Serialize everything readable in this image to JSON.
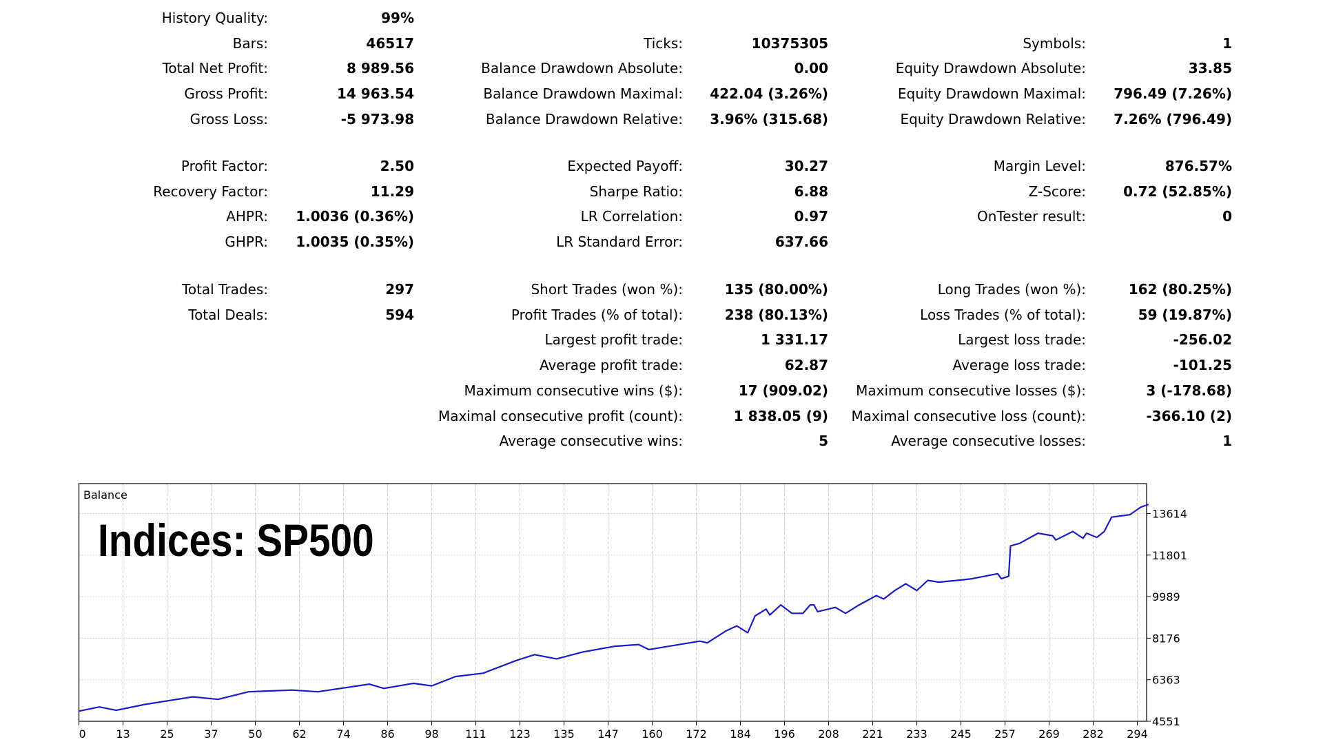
{
  "stats": {
    "sections": [
      {
        "rows": [
          [
            {
              "label": "History Quality:",
              "value": "99%"
            },
            null,
            null
          ],
          [
            {
              "label": "Bars:",
              "value": "46517"
            },
            {
              "label": "Ticks:",
              "value": "10375305"
            },
            {
              "label": "Symbols:",
              "value": "1"
            }
          ],
          [
            {
              "label": "Total Net Profit:",
              "value": "8 989.56"
            },
            {
              "label": "Balance Drawdown Absolute:",
              "value": "0.00"
            },
            {
              "label": "Equity Drawdown Absolute:",
              "value": "33.85"
            }
          ],
          [
            {
              "label": "Gross Profit:",
              "value": "14 963.54"
            },
            {
              "label": "Balance Drawdown Maximal:",
              "value": "422.04 (3.26%)"
            },
            {
              "label": "Equity Drawdown Maximal:",
              "value": "796.49 (7.26%)"
            }
          ],
          [
            {
              "label": "Gross Loss:",
              "value": "-5 973.98"
            },
            {
              "label": "Balance Drawdown Relative:",
              "value": "3.96% (315.68)"
            },
            {
              "label": "Equity Drawdown Relative:",
              "value": "7.26% (796.49)"
            }
          ]
        ]
      },
      {
        "rows": [
          [
            {
              "label": "Profit Factor:",
              "value": "2.50"
            },
            {
              "label": "Expected Payoff:",
              "value": "30.27"
            },
            {
              "label": "Margin Level:",
              "value": "876.57%"
            }
          ],
          [
            {
              "label": "Recovery Factor:",
              "value": "11.29"
            },
            {
              "label": "Sharpe Ratio:",
              "value": "6.88"
            },
            {
              "label": "Z-Score:",
              "value": "0.72 (52.85%)"
            }
          ],
          [
            {
              "label": "AHPR:",
              "value": "1.0036 (0.36%)"
            },
            {
              "label": "LR Correlation:",
              "value": "0.97"
            },
            {
              "label": "OnTester result:",
              "value": "0"
            }
          ],
          [
            {
              "label": "GHPR:",
              "value": "1.0035 (0.35%)"
            },
            {
              "label": "LR Standard Error:",
              "value": "637.66"
            },
            null
          ]
        ]
      },
      {
        "rows": [
          [
            {
              "label": "Total Trades:",
              "value": "297"
            },
            {
              "label": "Short Trades (won %):",
              "value": "135 (80.00%)"
            },
            {
              "label": "Long Trades (won %):",
              "value": "162 (80.25%)"
            }
          ],
          [
            {
              "label": "Total Deals:",
              "value": "594"
            },
            {
              "label": "Profit Trades (% of total):",
              "value": "238 (80.13%)"
            },
            {
              "label": "Loss Trades (% of total):",
              "value": "59 (19.87%)"
            }
          ],
          [
            null,
            {
              "label": "Largest profit trade:",
              "value": "1 331.17"
            },
            {
              "label": "Largest loss trade:",
              "value": "-256.02"
            }
          ],
          [
            null,
            {
              "label": "Average profit trade:",
              "value": "62.87"
            },
            {
              "label": "Average loss trade:",
              "value": "-101.25"
            }
          ],
          [
            null,
            {
              "label": "Maximum consecutive wins ($):",
              "value": "17 (909.02)"
            },
            {
              "label": "Maximum consecutive losses ($):",
              "value": "3 (-178.68)"
            }
          ],
          [
            null,
            {
              "label": "Maximal consecutive profit (count):",
              "value": "1 838.05 (9)"
            },
            {
              "label": "Maximal consecutive loss (count):",
              "value": "-366.10 (2)"
            }
          ],
          [
            null,
            {
              "label": "Average consecutive wins:",
              "value": "5"
            },
            {
              "label": "Average consecutive losses:",
              "value": "1"
            }
          ]
        ]
      }
    ]
  },
  "chart_data": {
    "type": "line",
    "title": "Balance",
    "annotation": "Indices: SP500",
    "xlabel": "",
    "ylabel": "",
    "x_ticks": [
      0,
      13,
      25,
      37,
      50,
      62,
      74,
      86,
      98,
      111,
      123,
      135,
      147,
      160,
      172,
      184,
      196,
      208,
      221,
      233,
      245,
      257,
      269,
      282,
      294
    ],
    "y_ticks": [
      4551,
      6363,
      8176,
      9989,
      11801,
      13614
    ],
    "xlim": [
      0,
      297
    ],
    "ylim": [
      4551,
      14950
    ],
    "grid": true,
    "line_color": "#1a1ac8",
    "series": [
      {
        "name": "Balance",
        "x": [
          0,
          6,
          11,
          19,
          32,
          39,
          48,
          60,
          67,
          81,
          85,
          93,
          98,
          105,
          113,
          122,
          127,
          133,
          140,
          149,
          156,
          159,
          166,
          173,
          175,
          180,
          183,
          186,
          188,
          191,
          192,
          195,
          198,
          201,
          203,
          204,
          205,
          210,
          213,
          217,
          222,
          224,
          227,
          230,
          233,
          236,
          239,
          244,
          248,
          255,
          256,
          258,
          258.5,
          261,
          266,
          270,
          271,
          276,
          279,
          280,
          283,
          285,
          287,
          292,
          295,
          297
        ],
        "y": [
          4993,
          5177,
          5029,
          5287,
          5618,
          5508,
          5839,
          5913,
          5839,
          6170,
          5986,
          6207,
          6097,
          6501,
          6649,
          7201,
          7458,
          7274,
          7569,
          7826,
          7900,
          7679,
          7863,
          8047,
          7973,
          8489,
          8710,
          8415,
          9151,
          9446,
          9188,
          9629,
          9262,
          9262,
          9629,
          9629,
          9335,
          9519,
          9262,
          9629,
          10034,
          9887,
          10255,
          10550,
          10255,
          10697,
          10623,
          10697,
          10770,
          10991,
          10770,
          10881,
          12205,
          12315,
          12757,
          12647,
          12463,
          12831,
          12536,
          12757,
          12573,
          12831,
          13457,
          13567,
          13898,
          14009
        ]
      }
    ]
  }
}
